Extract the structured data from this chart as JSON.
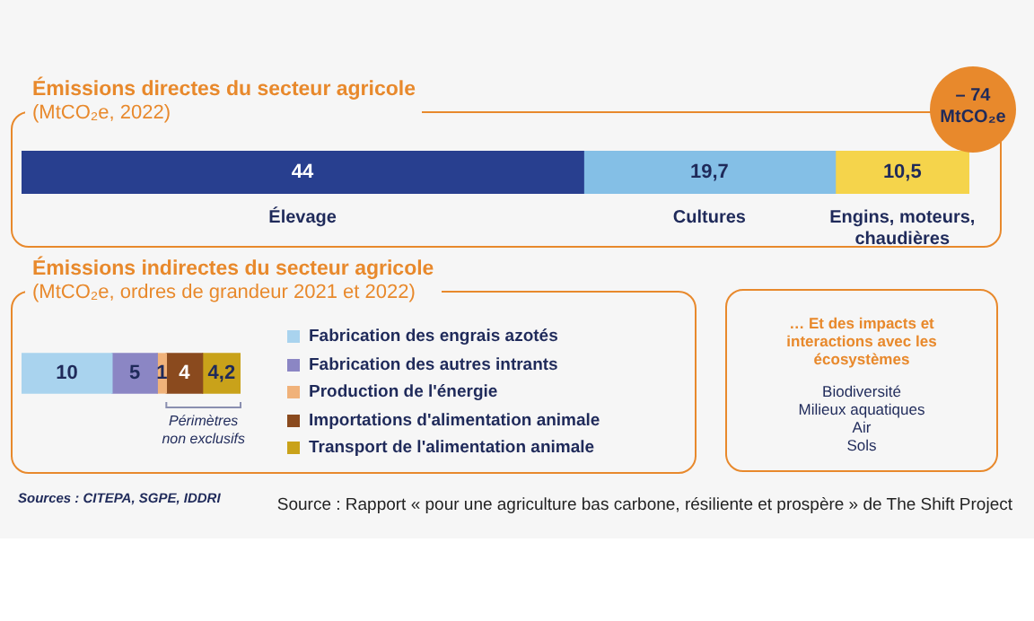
{
  "chart_data": [
    {
      "type": "bar",
      "title": "Émissions directes du secteur agricole",
      "subtitle": "(MtCO₂e, 2022)",
      "orientation": "horizontal",
      "stacked": true,
      "categories": [
        null
      ],
      "annotations": [
        "– 74 MtCO₂e"
      ],
      "series": [
        {
          "name": "Élevage",
          "color": "#283f8f",
          "values": [
            44
          ],
          "value_labels": [
            "44"
          ]
        },
        {
          "name": "Cultures",
          "color": "#84bfe6",
          "values": [
            19.7
          ],
          "value_labels": [
            "19,7"
          ]
        },
        {
          "name": "Engins, moteurs, chaudières",
          "color": "#f5d44b",
          "values": [
            10.5
          ],
          "value_labels": [
            "10,5"
          ]
        }
      ]
    },
    {
      "type": "bar",
      "title": "Émissions indirectes du secteur agricole",
      "subtitle": "(MtCO₂e, ordres de grandeur 2021 et 2022)",
      "orientation": "horizontal",
      "stacked": true,
      "categories": [
        null
      ],
      "legend": "right",
      "annotations": [
        "Périmètres non exclusifs",
        "Sources : CITEPA, SGPE, IDDRI",
        "Source : Rapport « pour une agriculture bas carbone, résiliente et prospère » de The Shift Project"
      ],
      "series": [
        {
          "name": "Fabrication des engrais azotés",
          "color": "#a9d3ee",
          "values": [
            10
          ],
          "value_labels": [
            "10"
          ]
        },
        {
          "name": "Fabrication des autres intrants",
          "color": "#8b86c4",
          "values": [
            5
          ],
          "value_labels": [
            "5"
          ]
        },
        {
          "name": "Production de l'énergie",
          "color": "#f0b27a",
          "values": [
            1
          ],
          "value_labels": [
            "1"
          ]
        },
        {
          "name": "Importations d'alimentation animale",
          "color": "#8a4a1e",
          "values": [
            4
          ],
          "value_labels": [
            "4"
          ]
        },
        {
          "name": "Transport de l'alimentation animale",
          "color": "#c9a21a",
          "values": [
            4.2
          ],
          "value_labels": [
            "4,2"
          ]
        }
      ]
    },
    {
      "type": "other",
      "title": "… Et des impacts et interactions avec les écosystèmes",
      "annotations": [
        "Biodiversité",
        "Milieux aquatiques",
        "Air",
        "Sols"
      ]
    }
  ]
}
